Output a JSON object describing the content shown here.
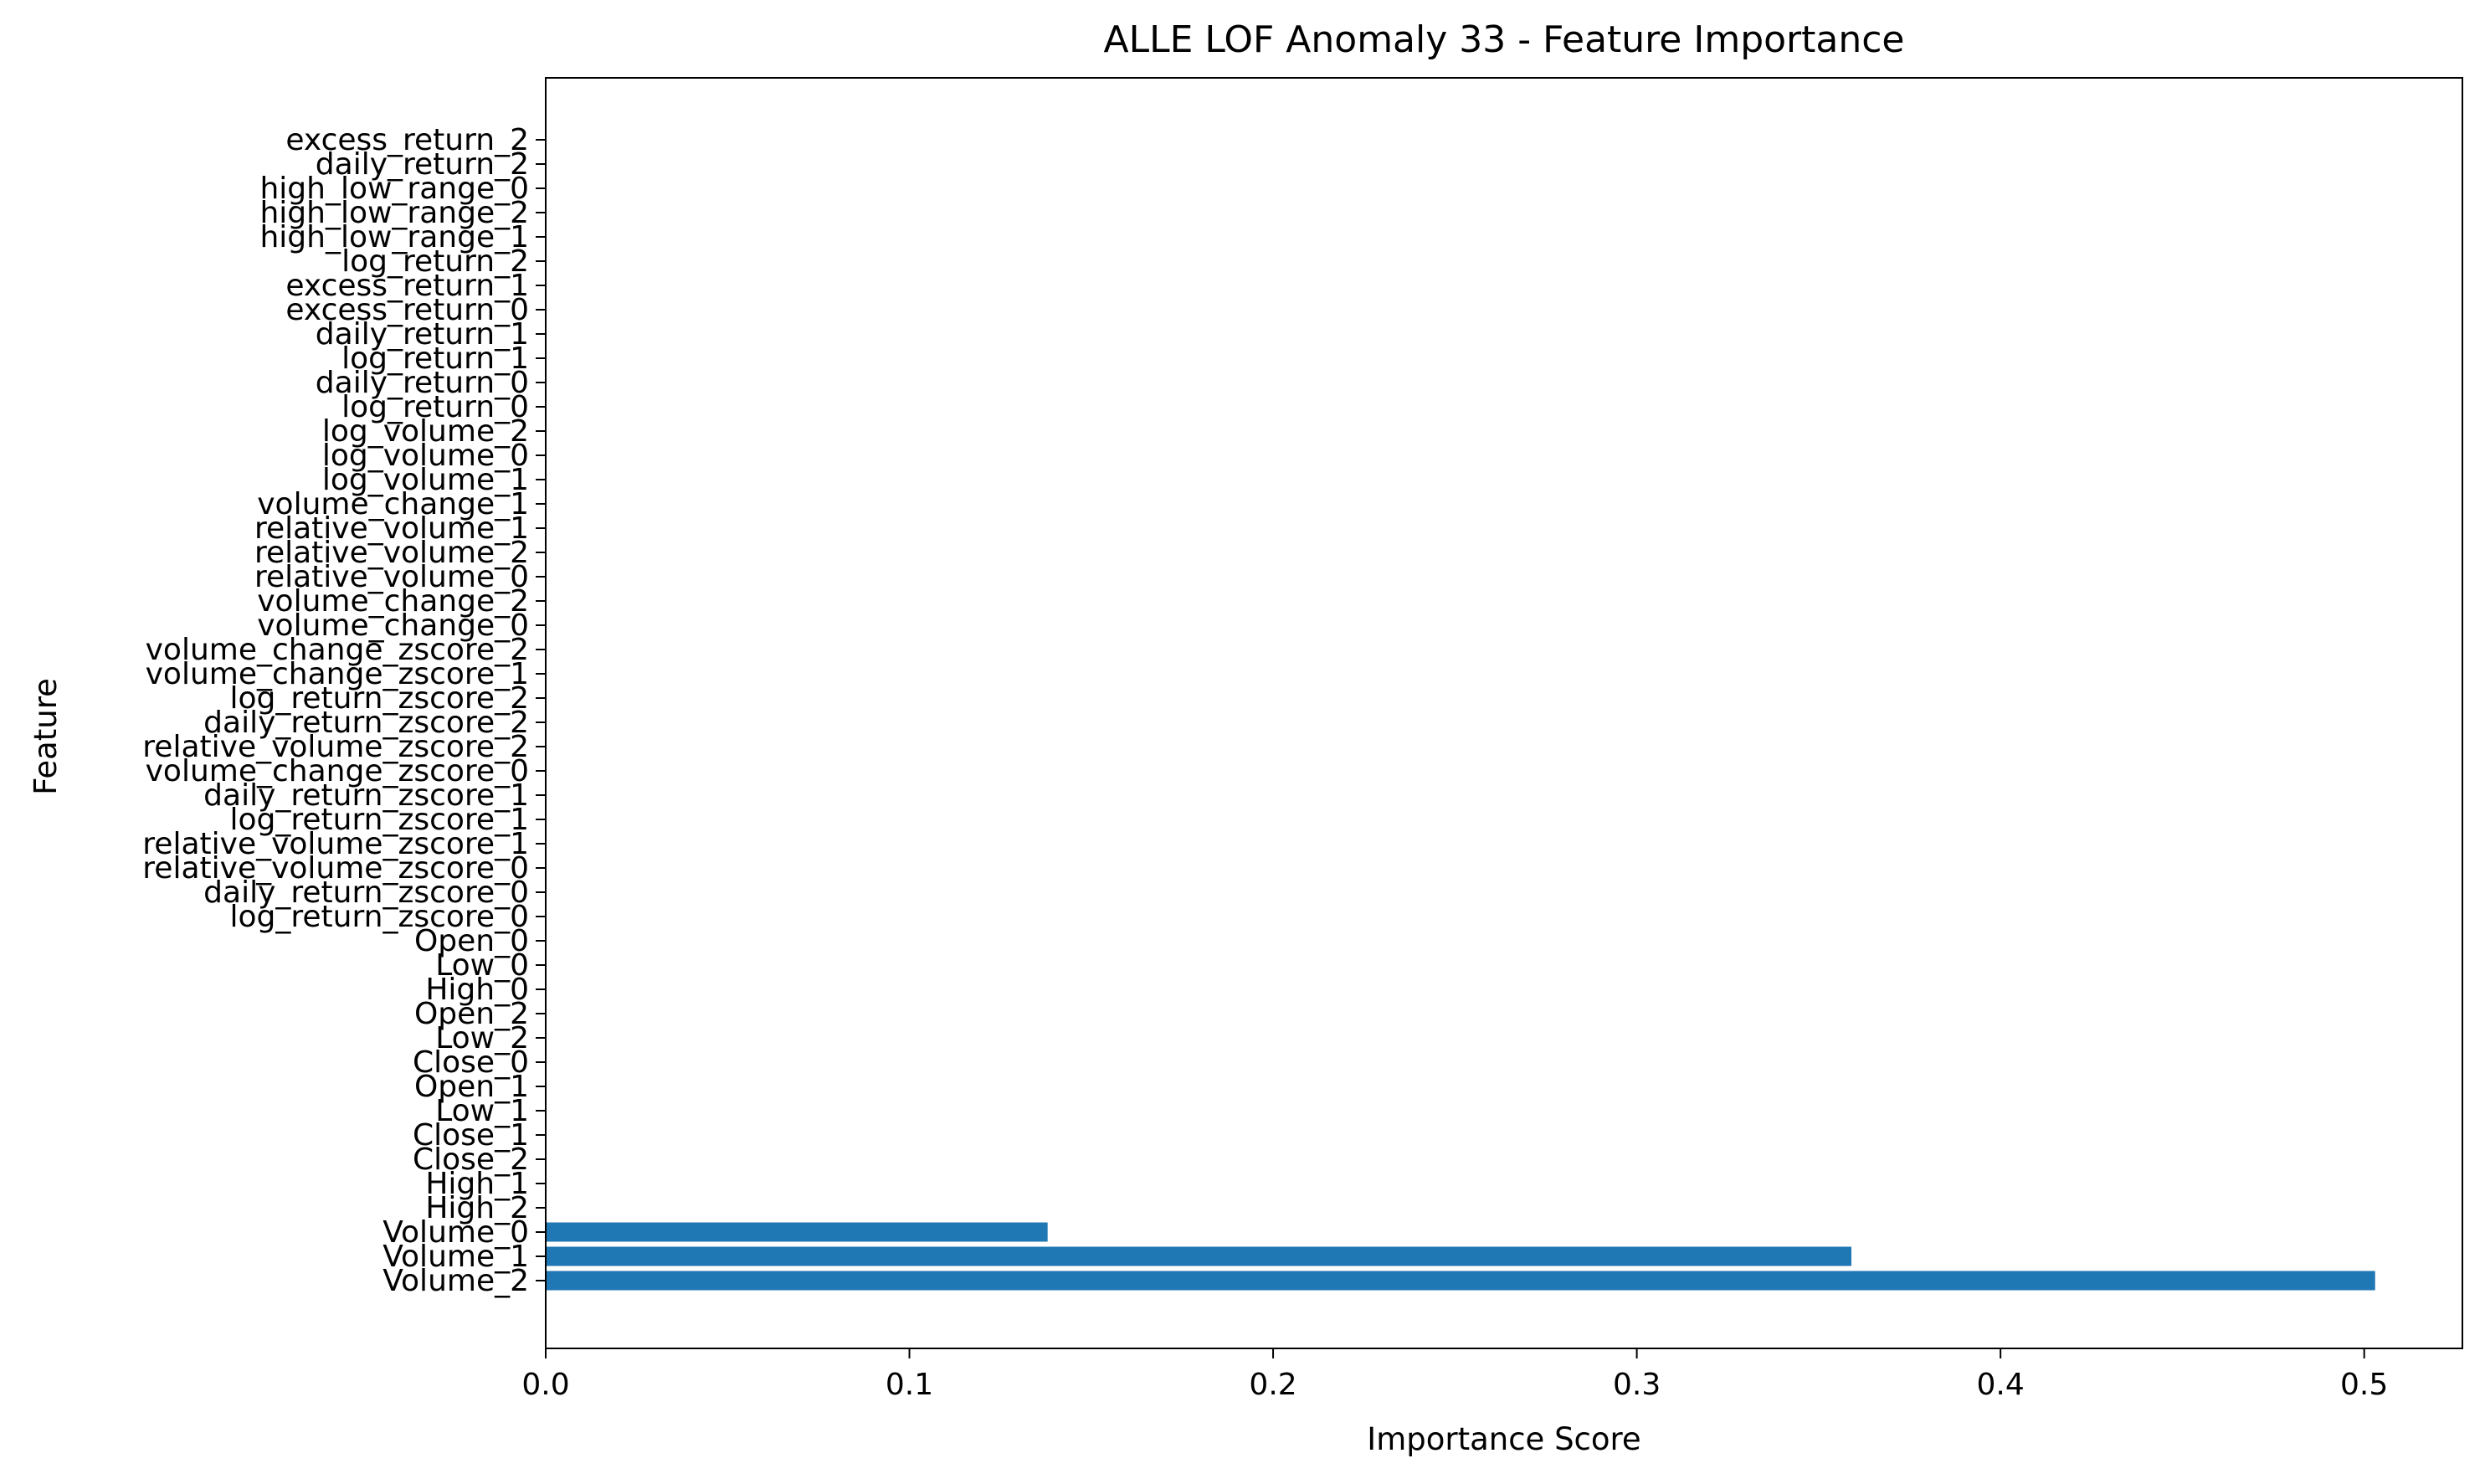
{
  "chart_data": {
    "type": "bar",
    "orientation": "horizontal",
    "title": "ALLE LOF Anomaly 33 - Feature Importance",
    "xlabel": "Importance Score",
    "ylabel": "Feature",
    "xlim": [
      0,
      0.527
    ],
    "xticks": [
      0.0,
      0.1,
      0.2,
      0.3,
      0.4,
      0.5
    ],
    "xtick_labels": [
      "0.0",
      "0.1",
      "0.2",
      "0.3",
      "0.4",
      "0.5"
    ],
    "grid": false,
    "legend": "none",
    "bar_color": "#1f77b4",
    "categories": [
      "Volume_2",
      "Volume_1",
      "Volume_0",
      "High_2",
      "High_1",
      "Close_2",
      "Close_1",
      "Low_1",
      "Open_1",
      "Close_0",
      "Low_2",
      "Open_2",
      "High_0",
      "Low_0",
      "Open_0",
      "log_return_zscore_0",
      "daily_return_zscore_0",
      "relative_volume_zscore_0",
      "relative_volume_zscore_1",
      "log_return_zscore_1",
      "daily_return_zscore_1",
      "volume_change_zscore_0",
      "relative_volume_zscore_2",
      "daily_return_zscore_2",
      "log_return_zscore_2",
      "volume_change_zscore_1",
      "volume_change_zscore_2",
      "volume_change_0",
      "volume_change_2",
      "relative_volume_0",
      "relative_volume_2",
      "relative_volume_1",
      "volume_change_1",
      "log_volume_1",
      "log_volume_0",
      "log_volume_2",
      "log_return_0",
      "daily_return_0",
      "log_return_1",
      "daily_return_1",
      "excess_return_0",
      "excess_return_1",
      "log_return_2",
      "high_low_range_1",
      "high_low_range_2",
      "high_low_range_0",
      "daily_return_2",
      "excess_return_2"
    ],
    "values": [
      0.503,
      0.359,
      0.138,
      0,
      0,
      0,
      0,
      0,
      0,
      0,
      0,
      0,
      0,
      0,
      0,
      0,
      0,
      0,
      0,
      0,
      0,
      0,
      0,
      0,
      0,
      0,
      0,
      0,
      0,
      0,
      0,
      0,
      0,
      0,
      0,
      0,
      0,
      0,
      0,
      0,
      0,
      0,
      0,
      0,
      0,
      0,
      0,
      0
    ]
  }
}
